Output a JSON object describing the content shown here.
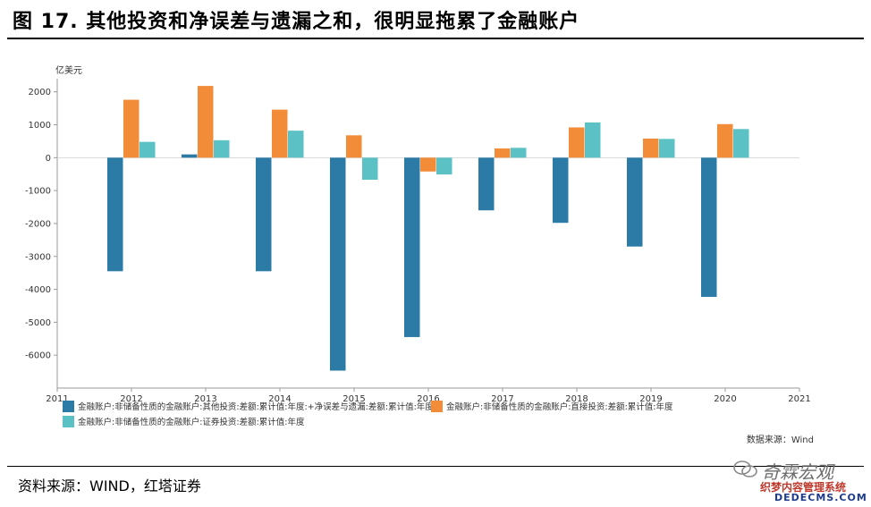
{
  "header": {
    "title": "图 17. 其他投资和净误差与遗漏之和，很明显拖累了金融账户"
  },
  "footer": {
    "source": "资料来源：WIND，红塔证券"
  },
  "watermark": {
    "line1": "奇霖宏观",
    "line2": "织梦内容管理系统",
    "line3": "DEDECMS.COM"
  },
  "chart_data": {
    "type": "bar",
    "unit_label": "亿美元",
    "source_note": "数据来源：Wind",
    "x_ticks": [
      "2011",
      "2012",
      "2013",
      "2014",
      "2015",
      "2016",
      "2017",
      "2018",
      "2019",
      "2020",
      "2021"
    ],
    "categories": [
      "2012",
      "2013",
      "2014",
      "2015",
      "2016",
      "2017",
      "2018",
      "2019",
      "2020"
    ],
    "y_ticks": [
      "2000",
      "1000",
      "0",
      "-1000",
      "-2000",
      "-3000",
      "-4000",
      "-5000",
      "-6000"
    ],
    "ylim": [
      -7000,
      2400
    ],
    "grid": false,
    "legend_position": "bottom",
    "series": [
      {
        "name": "金融账户:非储备性质的金融账户:其他投资:差额:累计值:年度:+净误差与遗漏:差额:累计值:年度",
        "color": "#2b7ba6",
        "values": [
          -3450,
          100,
          -3450,
          -6470,
          -5450,
          -1600,
          -1980,
          -2700,
          -4230
        ]
      },
      {
        "name": "金融账户:非储备性质的金融账户:直接投资:差额:累计值:年度",
        "color": "#f28c38",
        "values": [
          1760,
          2180,
          1460,
          680,
          -420,
          280,
          920,
          580,
          1020
        ]
      },
      {
        "name": "金融账户:非储备性质的金融账户:证券投资:差额:累计值:年度",
        "color": "#5bc1c4",
        "values": [
          480,
          530,
          820,
          -670,
          -510,
          300,
          1070,
          570,
          870
        ]
      }
    ]
  }
}
